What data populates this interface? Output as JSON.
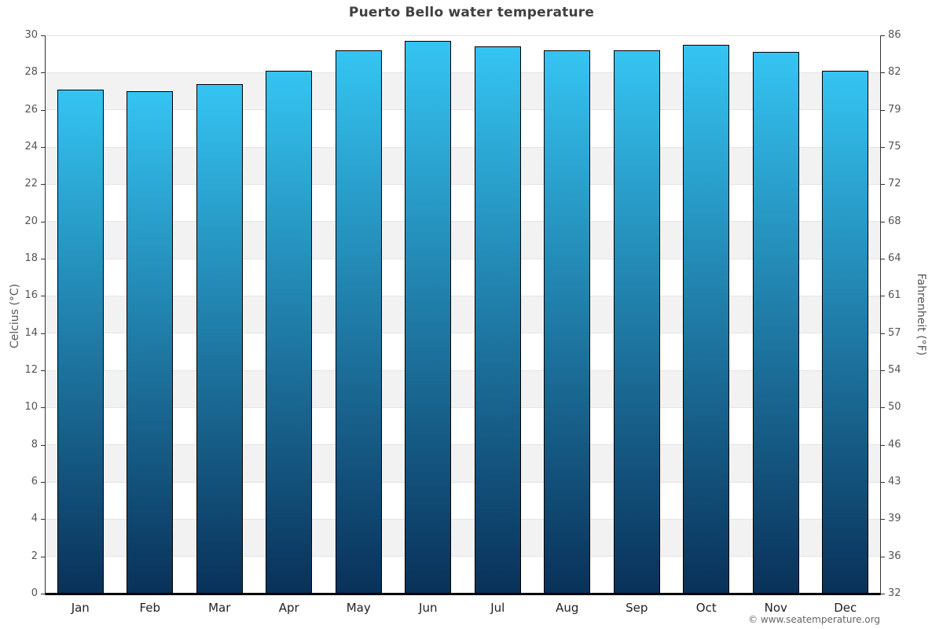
{
  "title": "Puerto Bello water temperature",
  "copyright": "© www.seatemperature.org",
  "chart_data": {
    "type": "bar",
    "title": "Puerto Bello water temperature",
    "categories": [
      "Jan",
      "Feb",
      "Mar",
      "Apr",
      "May",
      "Jun",
      "Jul",
      "Aug",
      "Sep",
      "Oct",
      "Nov",
      "Dec"
    ],
    "values": [
      27.1,
      27.0,
      27.4,
      28.1,
      29.2,
      29.7,
      29.4,
      29.2,
      29.2,
      29.5,
      29.1,
      28.1
    ],
    "xlabel": "",
    "ylabel_left": "Celcius (°C)",
    "ylabel_right": "Fahrenheit (°F)",
    "ylim": [
      0,
      30
    ],
    "y_tick_step": 2,
    "y_ticks": [
      {
        "c": 30,
        "f": 86
      },
      {
        "c": 28,
        "f": 82
      },
      {
        "c": 26,
        "f": 79
      },
      {
        "c": 24,
        "f": 75
      },
      {
        "c": 22,
        "f": 72
      },
      {
        "c": 20,
        "f": 68
      },
      {
        "c": 18,
        "f": 64
      },
      {
        "c": 16,
        "f": 61
      },
      {
        "c": 14,
        "f": 57
      },
      {
        "c": 12,
        "f": 54
      },
      {
        "c": 10,
        "f": 50
      },
      {
        "c": 8,
        "f": 46
      },
      {
        "c": 6,
        "f": 43
      },
      {
        "c": 4,
        "f": 39
      },
      {
        "c": 2,
        "f": 36
      },
      {
        "c": 0,
        "f": 32
      }
    ],
    "grid": true,
    "alternating_bands": true,
    "legend": "none"
  },
  "colors": {
    "bar_top": "#35c4f2",
    "bar_bottom": "#093159",
    "bar_border": "#000000",
    "band": "#f2f2f2",
    "gridline": "#e4e4e4",
    "axis_line": "#333333",
    "baseline": "#000000",
    "tick_label": "#555555",
    "month_label": "#222222",
    "title": "#404040",
    "copyright": "#666666"
  }
}
